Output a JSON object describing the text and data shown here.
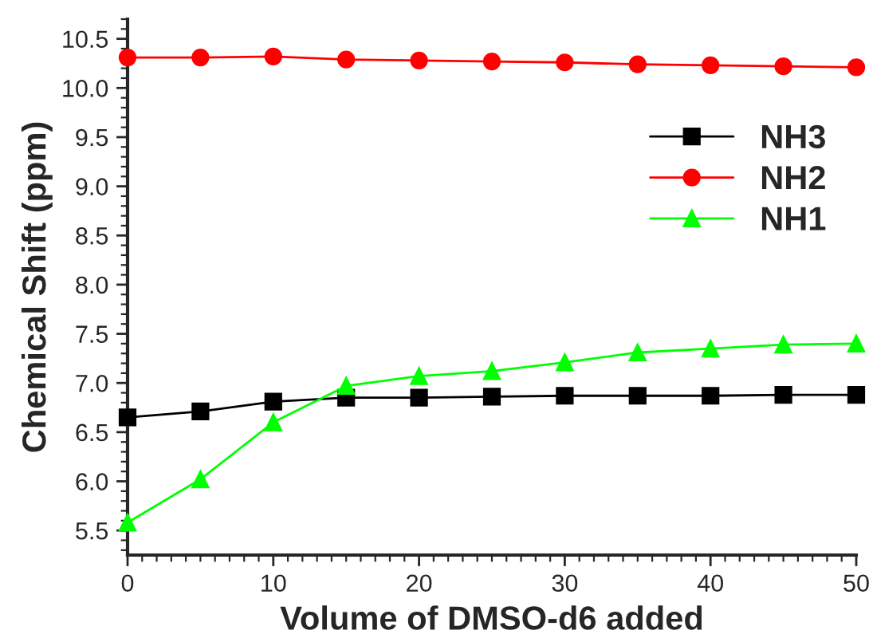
{
  "chart_data": {
    "type": "line",
    "xlabel": "Volume of DMSO-d6 added",
    "ylabel": "Chemical Shift (ppm)",
    "x": [
      0,
      5,
      10,
      15,
      20,
      25,
      30,
      35,
      40,
      45,
      50
    ],
    "series": [
      {
        "name": "NH3",
        "color": "#000000",
        "marker": "square",
        "values": [
          6.65,
          6.71,
          6.81,
          6.85,
          6.85,
          6.86,
          6.87,
          6.87,
          6.87,
          6.88,
          6.88
        ]
      },
      {
        "name": "NH2",
        "color": "#ff0000",
        "marker": "circle",
        "values": [
          10.31,
          10.31,
          10.32,
          10.29,
          10.28,
          10.27,
          10.26,
          10.24,
          10.23,
          10.22,
          10.21
        ]
      },
      {
        "name": "NH1",
        "color": "#00ff00",
        "marker": "triangle",
        "values": [
          5.58,
          6.02,
          6.6,
          6.97,
          7.07,
          7.12,
          7.21,
          7.31,
          7.35,
          7.39,
          7.4
        ]
      }
    ],
    "xlim": [
      0,
      50
    ],
    "xticks": [
      0,
      10,
      20,
      30,
      40,
      50
    ],
    "ylim": [
      5.25,
      10.7
    ],
    "yticks": [
      {
        "value": 5.5,
        "label": "5.5"
      },
      {
        "value": 6,
        "label": "6.0"
      },
      {
        "value": 6.5,
        "label": "6.5"
      },
      {
        "value": 7,
        "label": "7.0"
      },
      {
        "value": 7.5,
        "label": "7.5"
      },
      {
        "value": 8,
        "label": "8.0"
      },
      {
        "value": 8.5,
        "label": "8.5"
      },
      {
        "value": 9,
        "label": "9.0"
      },
      {
        "value": 9.5,
        "label": "9.5"
      },
      {
        "value": 10,
        "label": "10.0"
      },
      {
        "value": 10.5,
        "label": "10.5"
      }
    ],
    "grid": false,
    "legend": "top right"
  }
}
